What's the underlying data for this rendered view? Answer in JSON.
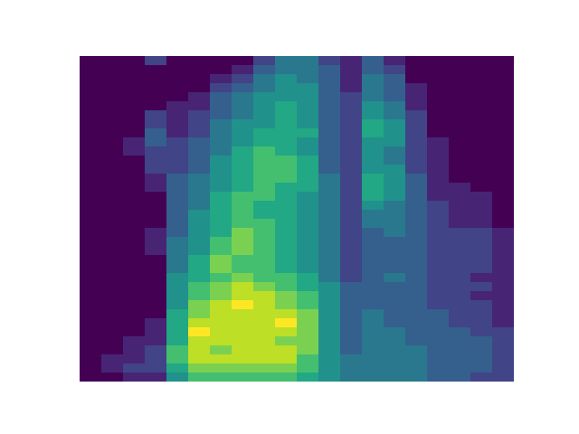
{
  "chart_data": {
    "type": "heatmap",
    "tick_labels": false,
    "value_range": [
      0,
      10
    ],
    "cells": [
      [
        0,
        0,
        0,
        2,
        0,
        0,
        0,
        0,
        2,
        4,
        4,
        2,
        1,
        3,
        1,
        0,
        0,
        0,
        0,
        0
      ],
      [
        0,
        0,
        0,
        0,
        0,
        0,
        0,
        1,
        3,
        4,
        4,
        3,
        1,
        3,
        2,
        0,
        0,
        0,
        0,
        0
      ],
      [
        0,
        0,
        0,
        0,
        0,
        0,
        1,
        2,
        4,
        5,
        4,
        3,
        1,
        4,
        3,
        0,
        0,
        0,
        0,
        0
      ],
      [
        0,
        0,
        0,
        0,
        0,
        0,
        2,
        3,
        4,
        5,
        5,
        3,
        1,
        4,
        3,
        1,
        0,
        0,
        0,
        0
      ],
      [
        0,
        0,
        0,
        0,
        0,
        1,
        3,
        4,
        5,
        5,
        5,
        3,
        2,
        4,
        3,
        1,
        0,
        0,
        0,
        0
      ],
      [
        0,
        0,
        0,
        0,
        1,
        1,
        3,
        4,
        5,
        6,
        5,
        3,
        2,
        5,
        4,
        1,
        0,
        0,
        0,
        0
      ],
      [
        0,
        0,
        0,
        2,
        1,
        2,
        3,
        4,
        5,
        6,
        5,
        3,
        2,
        5,
        4,
        2,
        0,
        0,
        0,
        0
      ],
      [
        0,
        0,
        0,
        2,
        1,
        2,
        4,
        5,
        5,
        6,
        5,
        3,
        2,
        6,
        5,
        2,
        0,
        0,
        0,
        0
      ],
      [
        0,
        0,
        0,
        3,
        1,
        2,
        4,
        5,
        6,
        6,
        6,
        3,
        2,
        6,
        5,
        2,
        0,
        0,
        0,
        0
      ],
      [
        0,
        0,
        1,
        3,
        2,
        3,
        4,
        5,
        6,
        6,
        5,
        3,
        2,
        5,
        5,
        2,
        1,
        0,
        0,
        0
      ],
      [
        0,
        0,
        1,
        2,
        2,
        3,
        4,
        6,
        7,
        6,
        5,
        3,
        2,
        5,
        4,
        2,
        1,
        0,
        0,
        0
      ],
      [
        0,
        0,
        0,
        2,
        2,
        3,
        5,
        6,
        7,
        7,
        6,
        3,
        2,
        5,
        4,
        2,
        1,
        0,
        0,
        0
      ],
      [
        0,
        0,
        0,
        2,
        2,
        3,
        5,
        6,
        7,
        7,
        6,
        3,
        2,
        5,
        5,
        2,
        1,
        0,
        0,
        0
      ],
      [
        0,
        0,
        0,
        1,
        3,
        4,
        5,
        6,
        7,
        7,
        6,
        4,
        2,
        6,
        5,
        3,
        1,
        0,
        0,
        0
      ],
      [
        0,
        0,
        0,
        1,
        3,
        4,
        5,
        6,
        7,
        6,
        6,
        4,
        2,
        6,
        5,
        3,
        1,
        1,
        0,
        0
      ],
      [
        0,
        0,
        0,
        0,
        3,
        4,
        6,
        7,
        7,
        6,
        5,
        4,
        2,
        6,
        5,
        3,
        1,
        1,
        1,
        0
      ],
      [
        0,
        0,
        0,
        0,
        3,
        4,
        6,
        7,
        6,
        6,
        5,
        4,
        2,
        5,
        4,
        3,
        2,
        1,
        1,
        0
      ],
      [
        0,
        0,
        0,
        0,
        3,
        5,
        6,
        7,
        6,
        6,
        5,
        4,
        2,
        4,
        4,
        3,
        2,
        1,
        1,
        0
      ],
      [
        0,
        0,
        0,
        0,
        3,
        5,
        6,
        7,
        7,
        6,
        5,
        4,
        2,
        4,
        4,
        3,
        2,
        1,
        1,
        0
      ],
      [
        0,
        0,
        0,
        1,
        3,
        5,
        6,
        8,
        7,
        6,
        5,
        4,
        2,
        3,
        4,
        3,
        2,
        2,
        2,
        1
      ],
      [
        0,
        0,
        0,
        1,
        4,
        5,
        7,
        8,
        7,
        6,
        5,
        4,
        2,
        3,
        3,
        3,
        2,
        2,
        2,
        1
      ],
      [
        0,
        0,
        0,
        1,
        4,
        5,
        7,
        8,
        7,
        6,
        5,
        4,
        2,
        3,
        3,
        3,
        2,
        2,
        2,
        1
      ],
      [
        0,
        0,
        0,
        0,
        4,
        6,
        8,
        7,
        7,
        6,
        5,
        4,
        2,
        3,
        3,
        3,
        2,
        2,
        2,
        1
      ],
      [
        0,
        0,
        0,
        0,
        4,
        6,
        8,
        7,
        7,
        6,
        5,
        4,
        2,
        3,
        3,
        3,
        2,
        2,
        2,
        1
      ],
      [
        0,
        0,
        0,
        0,
        5,
        6,
        7,
        8,
        7,
        7,
        6,
        4,
        2,
        3,
        4,
        3,
        2,
        2,
        1,
        1
      ],
      [
        0,
        0,
        0,
        0,
        5,
        7,
        8,
        9,
        8,
        7,
        6,
        5,
        3,
        3,
        3,
        3,
        2,
        2,
        2,
        1
      ],
      [
        0,
        0,
        0,
        0,
        5,
        7,
        8,
        9,
        9,
        8,
        7,
        5,
        3,
        3,
        3,
        3,
        2,
        2,
        1,
        1
      ],
      [
        0,
        0,
        0,
        0,
        5,
        8,
        9,
        10,
        9,
        8,
        7,
        5,
        3,
        3,
        3,
        3,
        2,
        2,
        2,
        1
      ],
      [
        0,
        0,
        0,
        0,
        6,
        8,
        9,
        9,
        9,
        9,
        8,
        5,
        3,
        4,
        3,
        3,
        3,
        2,
        2,
        1
      ],
      [
        0,
        0,
        0,
        1,
        6,
        9,
        9,
        9,
        9,
        10,
        8,
        5,
        3,
        4,
        3,
        3,
        3,
        2,
        2,
        1
      ],
      [
        0,
        0,
        0,
        1,
        6,
        10,
        9,
        9,
        9,
        9,
        8,
        5,
        3,
        4,
        4,
        3,
        3,
        3,
        2,
        2
      ],
      [
        0,
        0,
        1,
        1,
        6,
        9,
        9,
        9,
        9,
        8,
        8,
        5,
        3,
        4,
        4,
        3,
        3,
        3,
        3,
        2
      ],
      [
        0,
        0,
        1,
        2,
        7,
        9,
        8,
        9,
        9,
        9,
        8,
        5,
        3,
        4,
        4,
        4,
        3,
        3,
        3,
        2
      ],
      [
        0,
        1,
        1,
        2,
        7,
        9,
        9,
        9,
        9,
        9,
        7,
        5,
        4,
        4,
        4,
        4,
        3,
        3,
        3,
        2
      ],
      [
        0,
        1,
        2,
        2,
        6,
        8,
        8,
        8,
        8,
        8,
        7,
        5,
        4,
        4,
        4,
        4,
        3,
        3,
        3,
        2
      ],
      [
        0,
        0,
        1,
        1,
        5,
        7,
        7,
        7,
        7,
        7,
        6,
        5,
        4,
        4,
        4,
        4,
        3,
        3,
        2,
        2
      ]
    ]
  }
}
